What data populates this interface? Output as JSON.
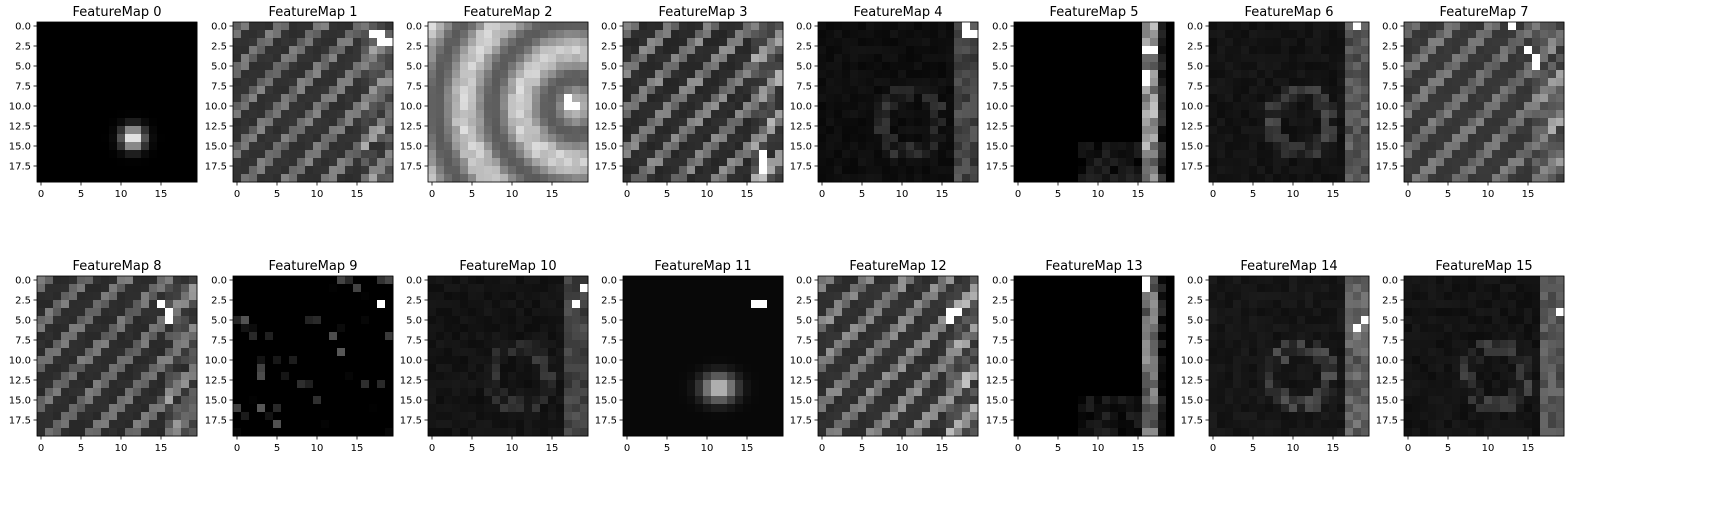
{
  "figure": {
    "colormap": "gray",
    "background": "#ffffff",
    "axis_color": "#000000"
  },
  "chart_data": [
    {
      "type": "heatmap",
      "title": "FeatureMap 0",
      "rows": 20,
      "cols": 20,
      "pattern": "blob",
      "cx": 11.5,
      "cy": 14,
      "sx": 1.0,
      "sy": 1.0,
      "amp": 1.0,
      "base": 0.0
    },
    {
      "type": "heatmap",
      "title": "FeatureMap 1",
      "rows": 20,
      "cols": 20,
      "pattern": "stripes",
      "base": 0.12,
      "amp": 0.45,
      "hot": [
        [
          18,
          1
        ],
        [
          18,
          2
        ],
        [
          19,
          2
        ],
        [
          17,
          1
        ]
      ]
    },
    {
      "type": "heatmap",
      "title": "FeatureMap 2",
      "rows": 20,
      "cols": 20,
      "pattern": "arc",
      "base": 0.35,
      "amp": 0.55,
      "hot": [
        [
          17,
          9
        ],
        [
          17,
          10
        ],
        [
          18,
          10
        ]
      ]
    },
    {
      "type": "heatmap",
      "title": "FeatureMap 3",
      "rows": 20,
      "cols": 20,
      "pattern": "stripes",
      "base": 0.08,
      "amp": 0.55,
      "hot": [
        [
          17,
          16
        ],
        [
          17,
          17
        ],
        [
          17,
          18
        ]
      ]
    },
    {
      "type": "heatmap",
      "title": "FeatureMap 4",
      "rows": 20,
      "cols": 20,
      "pattern": "edge",
      "base": 0.03,
      "amp": 0.3,
      "hot": [
        [
          18,
          0
        ],
        [
          18,
          1
        ],
        [
          19,
          1
        ]
      ]
    },
    {
      "type": "heatmap",
      "title": "FeatureMap 5",
      "rows": 20,
      "cols": 20,
      "pattern": "rightline",
      "base": 0.0,
      "amp": 0.8,
      "hot": [
        [
          16,
          3
        ],
        [
          17,
          3
        ],
        [
          16,
          6
        ],
        [
          16,
          7
        ]
      ]
    },
    {
      "type": "heatmap",
      "title": "FeatureMap 6",
      "rows": 20,
      "cols": 20,
      "pattern": "edge",
      "base": 0.05,
      "amp": 0.35,
      "hot": [
        [
          18,
          0
        ]
      ]
    },
    {
      "type": "heatmap",
      "title": "FeatureMap 7",
      "rows": 20,
      "cols": 20,
      "pattern": "stripes",
      "base": 0.15,
      "amp": 0.4,
      "hot": [
        [
          15,
          3
        ],
        [
          16,
          4
        ],
        [
          16,
          5
        ],
        [
          13,
          0
        ]
      ]
    },
    {
      "type": "heatmap",
      "title": "FeatureMap 8",
      "rows": 20,
      "cols": 20,
      "pattern": "stripes",
      "base": 0.1,
      "amp": 0.45,
      "hot": [
        [
          16,
          4
        ],
        [
          16,
          5
        ],
        [
          15,
          3
        ]
      ]
    },
    {
      "type": "heatmap",
      "title": "FeatureMap 9",
      "rows": 20,
      "cols": 20,
      "pattern": "sparse",
      "base": 0.0,
      "amp": 0.35,
      "hot": [
        [
          18,
          3
        ]
      ]
    },
    {
      "type": "heatmap",
      "title": "FeatureMap 10",
      "rows": 20,
      "cols": 20,
      "pattern": "edge",
      "base": 0.05,
      "amp": 0.25,
      "hot": [
        [
          19,
          1
        ],
        [
          18,
          3
        ]
      ]
    },
    {
      "type": "heatmap",
      "title": "FeatureMap 11",
      "rows": 20,
      "cols": 20,
      "pattern": "blob",
      "cx": 11.5,
      "cy": 13.5,
      "sx": 1.5,
      "sy": 1.2,
      "amp": 0.75,
      "base": 0.03,
      "hot": [
        [
          16,
          3
        ],
        [
          17,
          3
        ]
      ]
    },
    {
      "type": "heatmap",
      "title": "FeatureMap 12",
      "rows": 20,
      "cols": 20,
      "pattern": "stripes",
      "base": 0.1,
      "amp": 0.55,
      "hot": [
        [
          16,
          4
        ],
        [
          17,
          4
        ],
        [
          16,
          5
        ]
      ]
    },
    {
      "type": "heatmap",
      "title": "FeatureMap 13",
      "rows": 20,
      "cols": 20,
      "pattern": "rightline",
      "base": 0.0,
      "amp": 0.6,
      "hot": [
        [
          16,
          0
        ],
        [
          16,
          1
        ]
      ]
    },
    {
      "type": "heatmap",
      "title": "FeatureMap 14",
      "rows": 20,
      "cols": 20,
      "pattern": "edge",
      "base": 0.06,
      "amp": 0.4,
      "hot": [
        [
          19,
          5
        ],
        [
          18,
          6
        ]
      ]
    },
    {
      "type": "heatmap",
      "title": "FeatureMap 15",
      "rows": 20,
      "cols": 20,
      "pattern": "edge",
      "base": 0.05,
      "amp": 0.35,
      "hot": [
        [
          19,
          4
        ]
      ]
    }
  ],
  "axes": {
    "x_ticks": [
      0,
      5,
      10,
      15
    ],
    "y_ticks": [
      "0.0",
      "2.5",
      "5.0",
      "7.5",
      "10.0",
      "12.5",
      "15.0",
      "17.5"
    ],
    "x_tick_values": [
      0,
      5,
      10,
      15
    ],
    "y_tick_values": [
      0,
      2.5,
      5,
      7.5,
      10,
      12.5,
      15,
      17.5
    ]
  }
}
